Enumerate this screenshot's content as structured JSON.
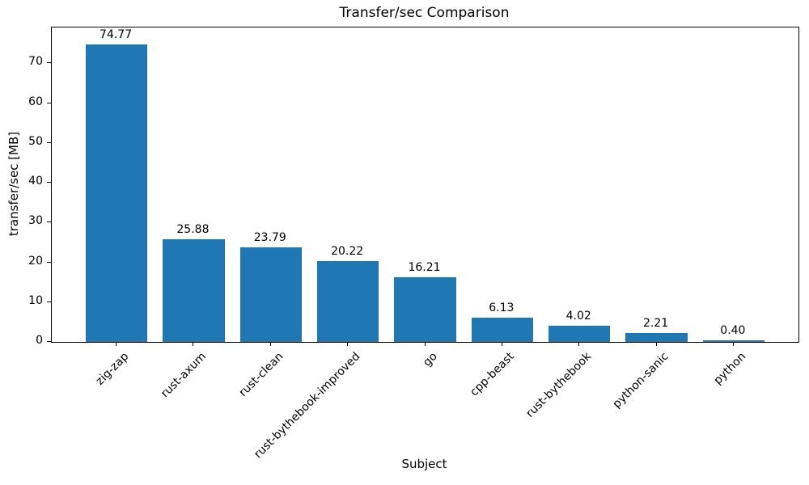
{
  "chart_data": {
    "type": "bar",
    "title": "Transfer/sec Comparison",
    "xlabel": "Subject",
    "ylabel": "transfer/sec [MB]",
    "categories": [
      "zig-zap",
      "rust-axum",
      "rust-clean",
      "rust-bythebook-improved",
      "go",
      "cpp-beast",
      "rust-bythebook",
      "python-sanic",
      "python"
    ],
    "values": [
      74.77,
      25.88,
      23.79,
      20.22,
      16.21,
      6.13,
      4.02,
      2.21,
      0.4
    ],
    "value_labels": [
      "74.77",
      "25.88",
      "23.79",
      "20.22",
      "16.21",
      "6.13",
      "4.02",
      "2.21",
      "0.40"
    ],
    "ylim": [
      0,
      79
    ],
    "yticks": [
      0,
      10,
      20,
      30,
      40,
      50,
      60,
      70
    ],
    "bar_color": "#1f77b4",
    "grid": false,
    "legend_position": "none"
  }
}
